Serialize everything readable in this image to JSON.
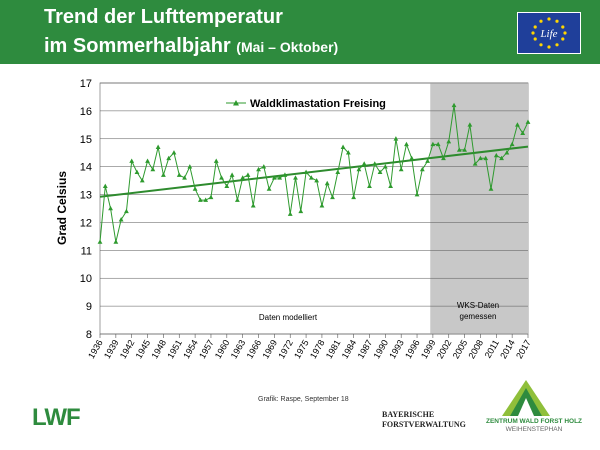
{
  "header": {
    "title_line1": "Trend der Lufttemperatur",
    "title_line2": "im Sommerhalbjahr",
    "subtitle": "(Mai – Oktober)",
    "logo_text": "Life"
  },
  "chart_data": {
    "type": "line",
    "ylabel": "Grad Celsius",
    "ylim": [
      8,
      17
    ],
    "yticks": [
      8,
      9,
      10,
      11,
      12,
      13,
      14,
      15,
      16,
      17
    ],
    "xlim": [
      1936,
      2017
    ],
    "xticks": [
      1936,
      1939,
      1942,
      1945,
      1948,
      1951,
      1954,
      1957,
      1960,
      1963,
      1966,
      1969,
      1972,
      1975,
      1978,
      1981,
      1984,
      1987,
      1990,
      1993,
      1996,
      1999,
      2002,
      2005,
      2008,
      2011,
      2014,
      2017
    ],
    "grid": true,
    "legend_position": "top-center",
    "measured_from": 1998.5,
    "region_labels": {
      "modelled": "Daten modelliert",
      "measured_line1": "WKS-Daten",
      "measured_line2": "gemessen"
    },
    "series": [
      {
        "name": "Waldklimastation Freising",
        "color": "#2e9a2e",
        "x": [
          1936,
          1937,
          1938,
          1939,
          1940,
          1941,
          1942,
          1943,
          1944,
          1945,
          1946,
          1947,
          1948,
          1949,
          1950,
          1951,
          1952,
          1953,
          1954,
          1955,
          1956,
          1957,
          1958,
          1959,
          1960,
          1961,
          1962,
          1963,
          1964,
          1965,
          1966,
          1967,
          1968,
          1969,
          1970,
          1971,
          1972,
          1973,
          1974,
          1975,
          1976,
          1977,
          1978,
          1979,
          1980,
          1981,
          1982,
          1983,
          1984,
          1985,
          1986,
          1987,
          1988,
          1989,
          1990,
          1991,
          1992,
          1993,
          1994,
          1995,
          1996,
          1997,
          1998,
          1999,
          2000,
          2001,
          2002,
          2003,
          2004,
          2005,
          2006,
          2007,
          2008,
          2009,
          2010,
          2011,
          2012,
          2013,
          2014,
          2015,
          2016,
          2017
        ],
        "y": [
          11.3,
          13.3,
          12.5,
          11.3,
          12.1,
          12.4,
          14.2,
          13.8,
          13.5,
          14.2,
          13.9,
          14.7,
          13.7,
          14.3,
          14.5,
          13.7,
          13.6,
          14.0,
          13.2,
          12.8,
          12.8,
          12.9,
          14.2,
          13.6,
          13.3,
          13.7,
          12.8,
          13.6,
          13.7,
          12.6,
          13.9,
          14.0,
          13.2,
          13.6,
          13.6,
          13.7,
          12.3,
          13.6,
          12.4,
          13.8,
          13.6,
          13.5,
          12.6,
          13.4,
          12.9,
          13.8,
          14.7,
          14.5,
          12.9,
          13.9,
          14.1,
          13.3,
          14.1,
          13.8,
          14.0,
          13.3,
          15.0,
          13.9,
          14.8,
          14.3,
          13.0,
          13.9,
          14.2,
          14.8,
          14.8,
          14.3,
          14.9,
          16.2,
          14.6,
          14.6,
          15.5,
          14.1,
          14.3,
          14.3,
          13.2,
          14.4,
          14.3,
          14.5,
          14.8,
          15.5,
          15.2,
          15.6
        ]
      },
      {
        "name": "Trend",
        "color": "#2e8b2e",
        "x": [
          1936,
          2017
        ],
        "y": [
          12.92,
          14.72
        ]
      }
    ]
  },
  "footer": {
    "credit": "Grafik: Raspe, September 18",
    "lwf_logo": "LWF",
    "bay_line1": "BAYERISCHE",
    "bay_line2": "FORSTVERWALTUNG",
    "zw_line1": "ZENTRUM WALD FORST HOLZ",
    "zw_line2": "WEIHENSTEPHAN"
  }
}
